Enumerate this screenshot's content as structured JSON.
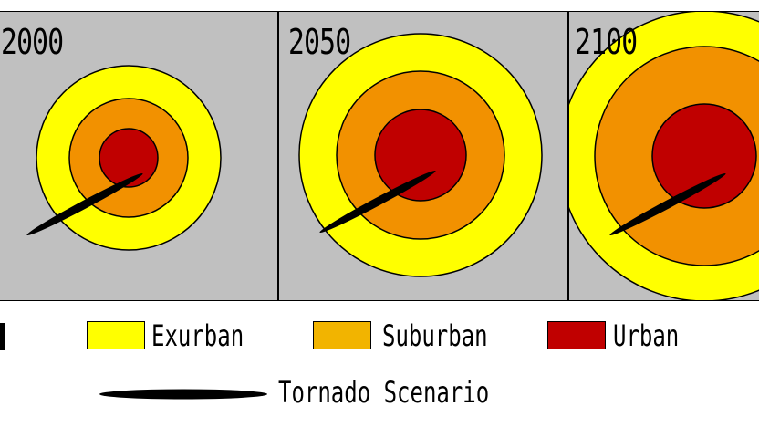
{
  "panels": [
    {
      "year": "2000"
    },
    {
      "year": "2050"
    },
    {
      "year": "2100"
    }
  ],
  "legend": {
    "exurban": "Exurban",
    "suburban": "Suburban",
    "urban": "Urban",
    "tornado": "Tornado Scenario"
  },
  "colors": {
    "background": "#c0c0c0",
    "exurban": "#ffff00",
    "suburban": "#f29100",
    "urban": "#c00000",
    "tornado": "#000000"
  }
}
